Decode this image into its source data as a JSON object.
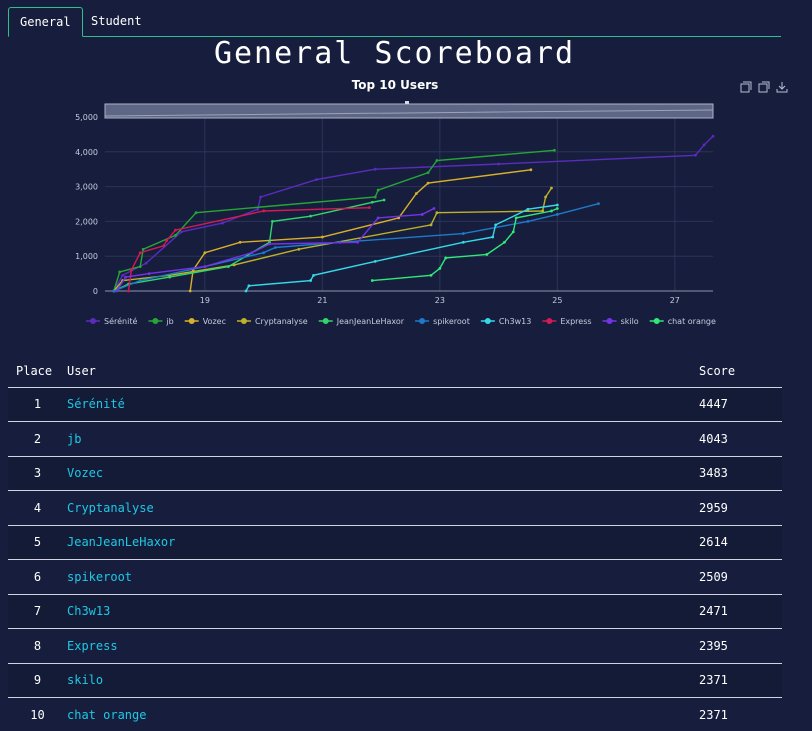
{
  "tabs": [
    {
      "label": "General",
      "active": true
    },
    {
      "label": "Student",
      "active": false
    }
  ],
  "page_title": "General Scoreboard",
  "modebar": [
    "zoom-in-icon",
    "zoom-out-icon",
    "download-icon"
  ],
  "table": {
    "headers": {
      "place": "Place",
      "user": "User",
      "score": "Score"
    },
    "rows": [
      {
        "place": "1",
        "user": "Sérénité",
        "score": "4447"
      },
      {
        "place": "2",
        "user": "jb",
        "score": "4043"
      },
      {
        "place": "3",
        "user": "Vozec",
        "score": "3483"
      },
      {
        "place": "4",
        "user": "Cryptanalyse",
        "score": "2959"
      },
      {
        "place": "5",
        "user": "JeanJeanLeHaxor",
        "score": "2614"
      },
      {
        "place": "6",
        "user": "spikeroot",
        "score": "2509"
      },
      {
        "place": "7",
        "user": "Ch3w13",
        "score": "2471"
      },
      {
        "place": "8",
        "user": "Express",
        "score": "2395"
      },
      {
        "place": "9",
        "user": "skilo",
        "score": "2371"
      },
      {
        "place": "10",
        "user": "chat orange",
        "score": "2371"
      }
    ]
  },
  "chart_data": {
    "type": "line",
    "title": "Top 10 Users",
    "xlabel": "",
    "ylabel": "",
    "xlim": [
      17.3,
      27.65
    ],
    "ylim": [
      0,
      5000
    ],
    "xticks": [
      19,
      21,
      23,
      25,
      27
    ],
    "yticks": [
      0,
      1000,
      2000,
      3000,
      4000,
      5000
    ],
    "ytick_labels": [
      "0",
      "1,000",
      "2,000",
      "3,000",
      "4,000",
      "5,000"
    ],
    "grid": true,
    "legend_position": "bottom",
    "series": [
      {
        "name": "Sérénité",
        "color": "#5b2bbf",
        "points": [
          [
            17.45,
            0
          ],
          [
            17.6,
            450
          ],
          [
            18.0,
            800
          ],
          [
            18.6,
            1700
          ],
          [
            19.3,
            1950
          ],
          [
            19.9,
            2350
          ],
          [
            19.95,
            2700
          ],
          [
            20.9,
            3200
          ],
          [
            21.9,
            3500
          ],
          [
            24.0,
            3650
          ],
          [
            27.35,
            3900
          ],
          [
            27.5,
            4200
          ],
          [
            27.65,
            4447
          ]
        ]
      },
      {
        "name": "jb",
        "color": "#25a735",
        "points": [
          [
            17.45,
            0
          ],
          [
            17.55,
            550
          ],
          [
            17.9,
            700
          ],
          [
            17.95,
            1200
          ],
          [
            18.5,
            1600
          ],
          [
            18.85,
            2250
          ],
          [
            21.9,
            2700
          ],
          [
            21.95,
            2900
          ],
          [
            22.8,
            3400
          ],
          [
            22.95,
            3750
          ],
          [
            24.95,
            4043
          ]
        ]
      },
      {
        "name": "Vozec",
        "color": "#d8b02a",
        "points": [
          [
            18.75,
            0
          ],
          [
            18.8,
            600
          ],
          [
            19.0,
            1100
          ],
          [
            19.6,
            1400
          ],
          [
            21.0,
            1550
          ],
          [
            22.3,
            2100
          ],
          [
            22.6,
            2800
          ],
          [
            22.8,
            3100
          ],
          [
            24.55,
            3483
          ]
        ]
      },
      {
        "name": "Cryptanalyse",
        "color": "#bfb129",
        "points": [
          [
            17.45,
            0
          ],
          [
            17.6,
            300
          ],
          [
            18.4,
            450
          ],
          [
            19.5,
            750
          ],
          [
            20.6,
            1200
          ],
          [
            22.85,
            1900
          ],
          [
            22.95,
            2250
          ],
          [
            24.75,
            2300
          ],
          [
            24.8,
            2700
          ],
          [
            24.9,
            2959
          ]
        ]
      },
      {
        "name": "JeanJeanLeHaxor",
        "color": "#30d66b",
        "points": [
          [
            17.45,
            0
          ],
          [
            17.7,
            200
          ],
          [
            18.4,
            400
          ],
          [
            19.4,
            700
          ],
          [
            20.1,
            1400
          ],
          [
            20.15,
            2000
          ],
          [
            20.8,
            2150
          ],
          [
            21.85,
            2550
          ],
          [
            22.05,
            2614
          ]
        ]
      },
      {
        "name": "spikeroot",
        "color": "#1c7ac8",
        "points": [
          [
            17.45,
            0
          ],
          [
            17.9,
            300
          ],
          [
            19.0,
            700
          ],
          [
            20.0,
            1100
          ],
          [
            20.2,
            1250
          ],
          [
            21.3,
            1400
          ],
          [
            23.4,
            1650
          ],
          [
            24.5,
            2000
          ],
          [
            25.0,
            2200
          ],
          [
            25.7,
            2509
          ]
        ]
      },
      {
        "name": "Ch3w13",
        "color": "#35d9e8",
        "points": [
          [
            19.7,
            0
          ],
          [
            19.75,
            150
          ],
          [
            20.8,
            300
          ],
          [
            20.85,
            450
          ],
          [
            21.9,
            850
          ],
          [
            23.4,
            1400
          ],
          [
            23.9,
            1550
          ],
          [
            23.95,
            1900
          ],
          [
            24.5,
            2350
          ],
          [
            25.0,
            2471
          ]
        ]
      },
      {
        "name": "Express",
        "color": "#d21a55",
        "points": [
          [
            17.7,
            0
          ],
          [
            17.75,
            600
          ],
          [
            17.9,
            1100
          ],
          [
            18.3,
            1300
          ],
          [
            18.35,
            1450
          ],
          [
            18.5,
            1750
          ],
          [
            20.0,
            2300
          ],
          [
            21.8,
            2395
          ]
        ]
      },
      {
        "name": "skilo",
        "color": "#7533e8",
        "points": [
          [
            17.5,
            0
          ],
          [
            17.65,
            400
          ],
          [
            18.05,
            500
          ],
          [
            19.0,
            700
          ],
          [
            19.8,
            1100
          ],
          [
            20.1,
            1350
          ],
          [
            21.6,
            1400
          ],
          [
            21.95,
            2100
          ],
          [
            22.7,
            2200
          ],
          [
            22.9,
            2371
          ]
        ]
      },
      {
        "name": "chat orange",
        "color": "#2fea79",
        "points": [
          [
            21.85,
            300
          ],
          [
            22.85,
            450
          ],
          [
            23.0,
            650
          ],
          [
            23.1,
            950
          ],
          [
            23.8,
            1050
          ],
          [
            24.1,
            1400
          ],
          [
            24.25,
            1700
          ],
          [
            24.3,
            2100
          ],
          [
            24.9,
            2300
          ],
          [
            25.0,
            2371
          ]
        ]
      }
    ]
  }
}
